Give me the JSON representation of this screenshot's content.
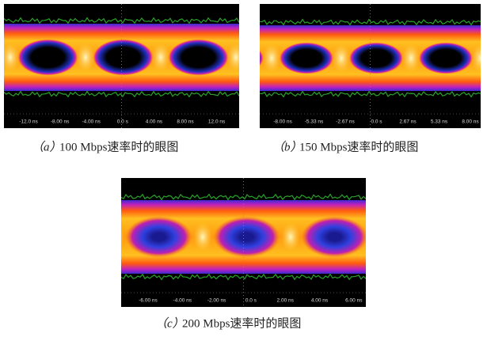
{
  "panels": [
    {
      "label": "（a）",
      "caption": "100 Mbps速率时的眼图",
      "ticks": [
        "-12.0 ns",
        "-8.00 ns",
        "-4.00 ns",
        "0.0 s",
        "4.00 ns",
        "8.00 ns",
        "12.0 ns"
      ]
    },
    {
      "label": "（b）",
      "caption": "150 Mbps速率时的眼图",
      "ticks": [
        "-8.00 ns",
        "-5.33 ns",
        "-2.67 ns",
        "0.0 s",
        "2.67 ns",
        "5.33 ns",
        "8.00 ns"
      ]
    },
    {
      "label": "（c）",
      "caption": "200 Mbps速率时的眼图",
      "ticks": [
        "-6.00 ns",
        "-4.00 ns",
        "-2.00 ns",
        "0.0 s",
        "2.00 ns",
        "4.00 ns",
        "6.00 ns"
      ]
    }
  ]
}
